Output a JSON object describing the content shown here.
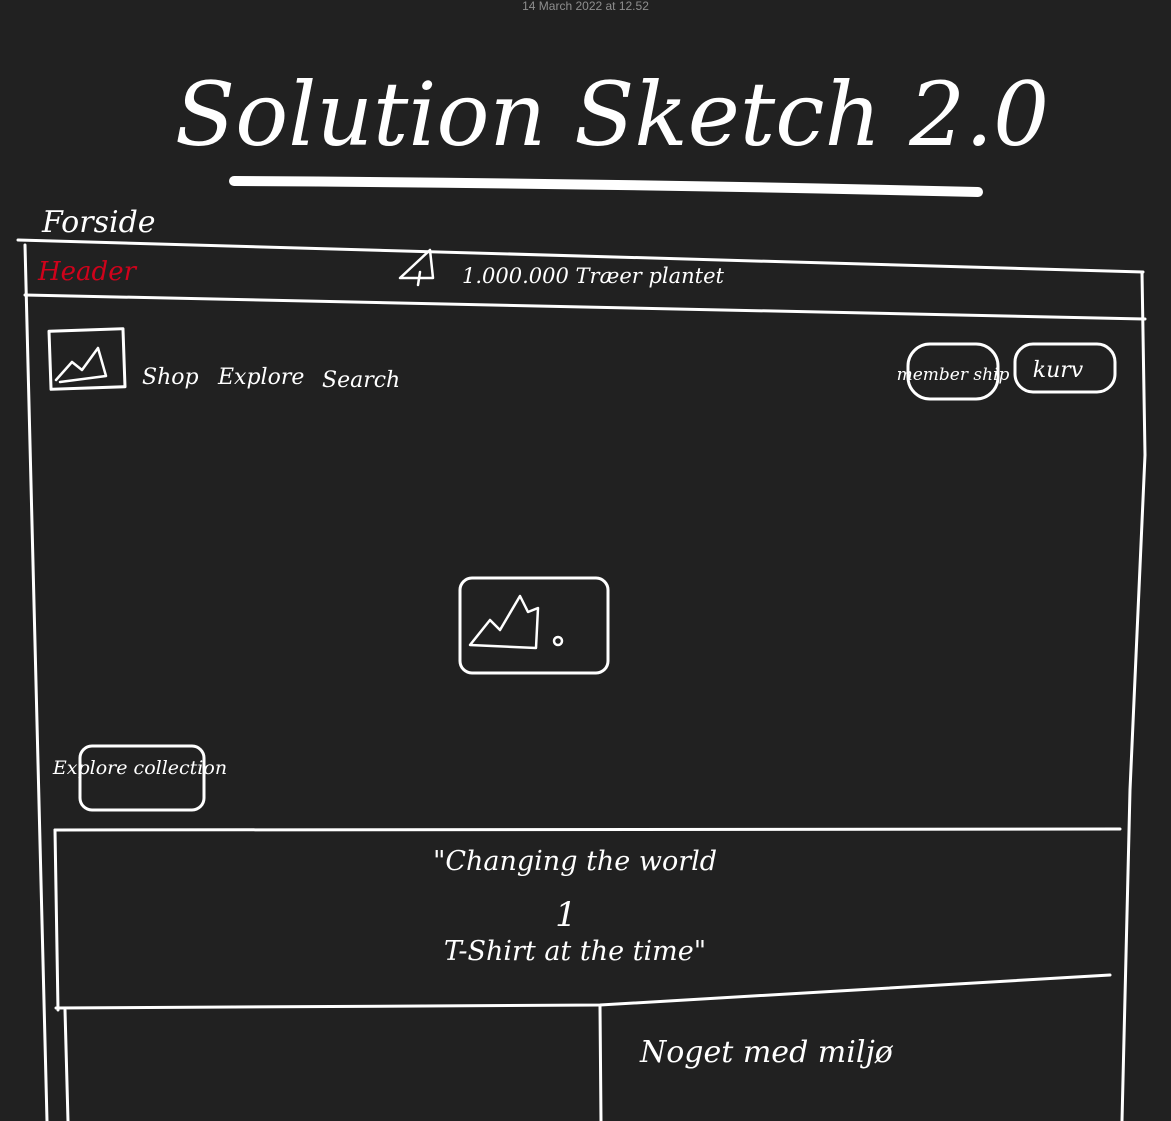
{
  "timestamp": "14 March 2022 at 12.52",
  "title": "Solution Sketch 2.0",
  "page_label": "Forside",
  "header": {
    "label": "Header",
    "label_color": "#d0021b",
    "announcement": "1.000.000 Træer plantet",
    "announcement_icon": "tree-icon"
  },
  "nav": {
    "logo_icon": "image-placeholder-icon",
    "items": [
      "Shop",
      "Explore",
      "Search"
    ],
    "membership_button": "member ship",
    "cart_button": "kurv"
  },
  "hero": {
    "image_icon": "image-placeholder-icon",
    "cta_button": "Explore collection"
  },
  "quote": {
    "line1": "\"Changing the world",
    "line2": "1",
    "line3": "T-Shirt at the time\""
  },
  "bottom": {
    "right_text": "Noget med miljø"
  }
}
